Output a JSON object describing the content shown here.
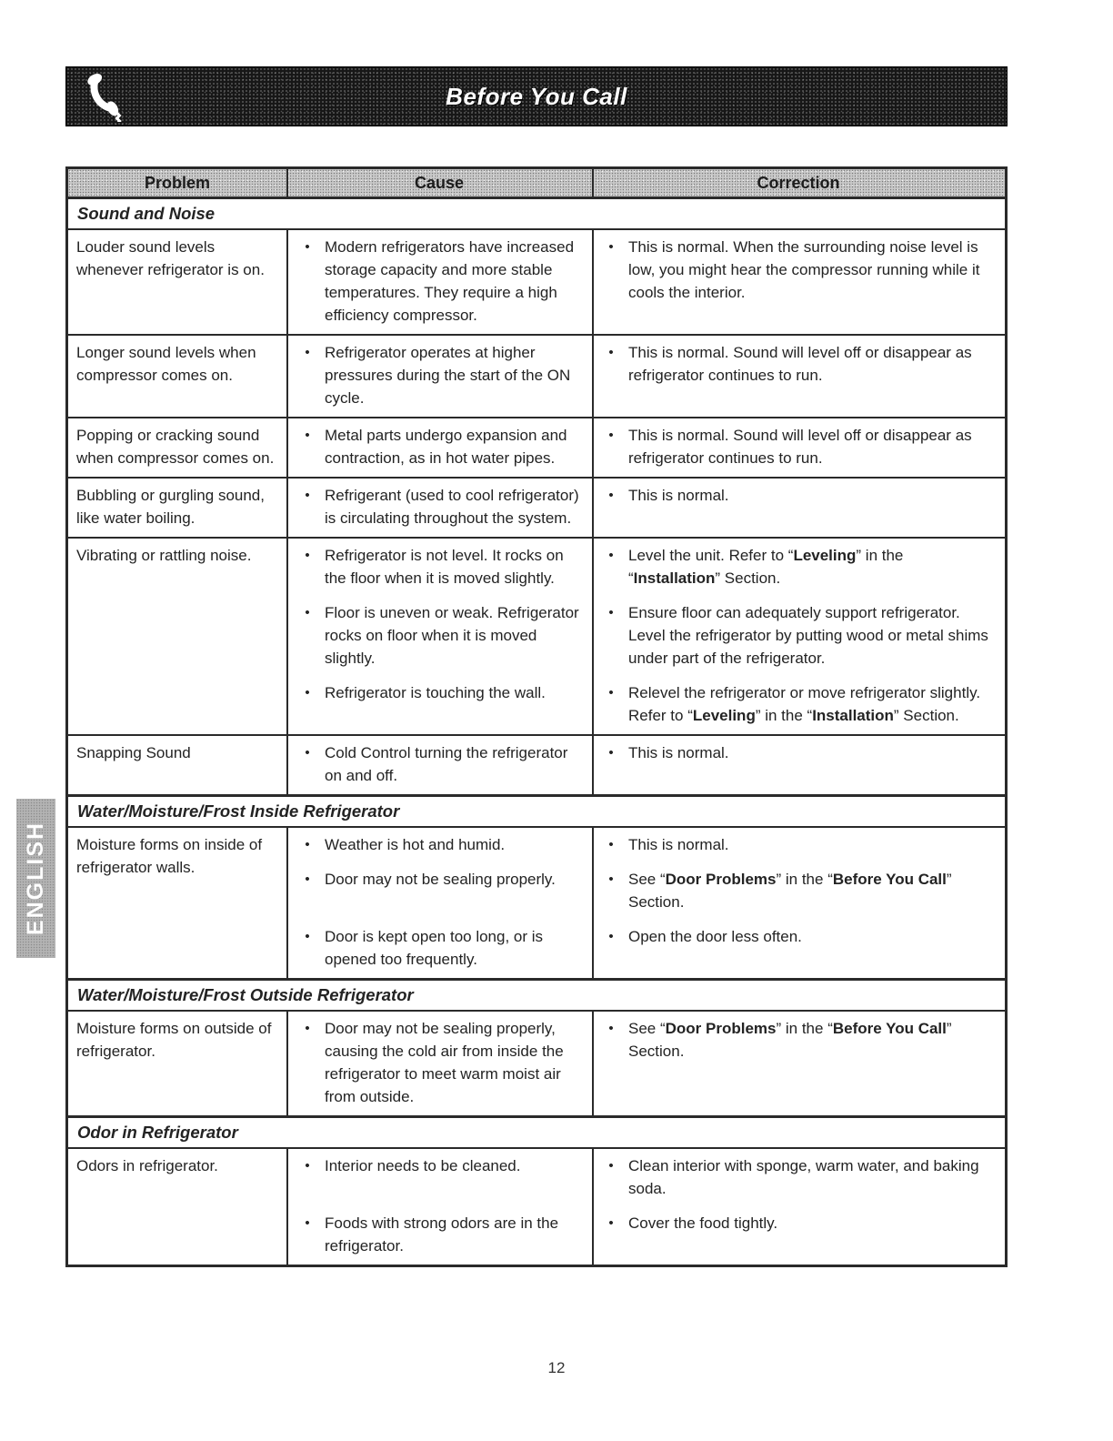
{
  "page": {
    "title": "Before You Call",
    "side_tab": "ENGLISH",
    "page_number": "12"
  },
  "colors": {
    "header_bar_bg": "#171717",
    "table_header_bg": "#c8c8c8",
    "side_tab_bg": "#b3b3b3",
    "text": "#232323",
    "title_text": "#ffffff"
  },
  "icons": {
    "phone": "phone-handset-icon"
  },
  "table": {
    "headers": [
      "Problem",
      "Cause",
      "Correction"
    ],
    "sections": [
      {
        "title": "Sound and Noise",
        "rows": [
          {
            "problem": "Louder sound levels whenever refrigerator is on.",
            "cause": [
              "Modern refrigerators have increased storage capacity and more stable temperatures. They require a high efficiency compressor."
            ],
            "correction": [
              "This is normal. When the surrounding noise level is low, you might hear the compressor running while it cools the interior."
            ]
          },
          {
            "problem": "Longer sound levels when compressor comes on.",
            "cause": [
              "Refrigerator operates at higher pressures during the start of the ON cycle."
            ],
            "correction": [
              "This is normal. Sound will level off or disappear as refrigerator continues to run."
            ]
          },
          {
            "problem": "Popping or cracking sound when compressor comes on.",
            "cause": [
              "Metal parts undergo expansion and contraction, as in hot water pipes."
            ],
            "correction": [
              "This is normal. Sound will level off or disappear as refrigerator continues to run."
            ]
          },
          {
            "problem": "Bubbling or gurgling sound, like water boiling.",
            "cause": [
              "Refrigerant (used to cool refrigerator) is circulating throughout the system."
            ],
            "correction": [
              "This is normal."
            ]
          },
          {
            "problem": "Vibrating or rattling noise.",
            "cause": [
              "Refrigerator is not level. It rocks on the floor when it is moved slightly.",
              "Floor is uneven or weak. Refrigerator rocks on floor when it is moved slightly.",
              "Refrigerator is touching the wall."
            ],
            "correction": [
              "Level the unit. Refer to “**Leveling**” in the “**Installation**” Section.",
              "Ensure floor can adequately support refrigerator. Level the refrigerator by putting wood or metal shims under part of the refrigerator.",
              "Relevel the refrigerator or move refrigerator slightly. Refer to “**Leveling**” in the “**Installation**” Section."
            ]
          },
          {
            "problem": "Snapping Sound",
            "cause": [
              "Cold Control turning the refrigerator on and off."
            ],
            "correction": [
              "This is normal."
            ]
          }
        ]
      },
      {
        "title": "Water/Moisture/Frost Inside Refrigerator",
        "rows": [
          {
            "problem": "Moisture forms on inside of refrigerator walls.",
            "cause": [
              "Weather is hot and humid.",
              "Door may not be sealing properly.",
              "Door is kept open too long, or is opened too frequently."
            ],
            "correction": [
              "This is normal.",
              "See “**Door Problems**” in the “**Before You Call**” Section.",
              "Open the door less often."
            ]
          }
        ]
      },
      {
        "title": "Water/Moisture/Frost Outside Refrigerator",
        "rows": [
          {
            "problem": "Moisture forms on outside of refrigerator.",
            "cause": [
              "Door may not be sealing properly, causing the cold air from inside the refrigerator to meet warm moist air from outside."
            ],
            "correction": [
              "See “**Door Problems**” in the “**Before You Call**” Section."
            ]
          }
        ]
      },
      {
        "title": "Odor in Refrigerator",
        "rows": [
          {
            "problem": "Odors in refrigerator.",
            "cause": [
              "Interior needs to be cleaned.",
              "Foods with strong odors are in the refrigerator."
            ],
            "correction": [
              "Clean interior with sponge, warm water, and baking soda.",
              "Cover the food tightly."
            ]
          }
        ]
      }
    ]
  }
}
